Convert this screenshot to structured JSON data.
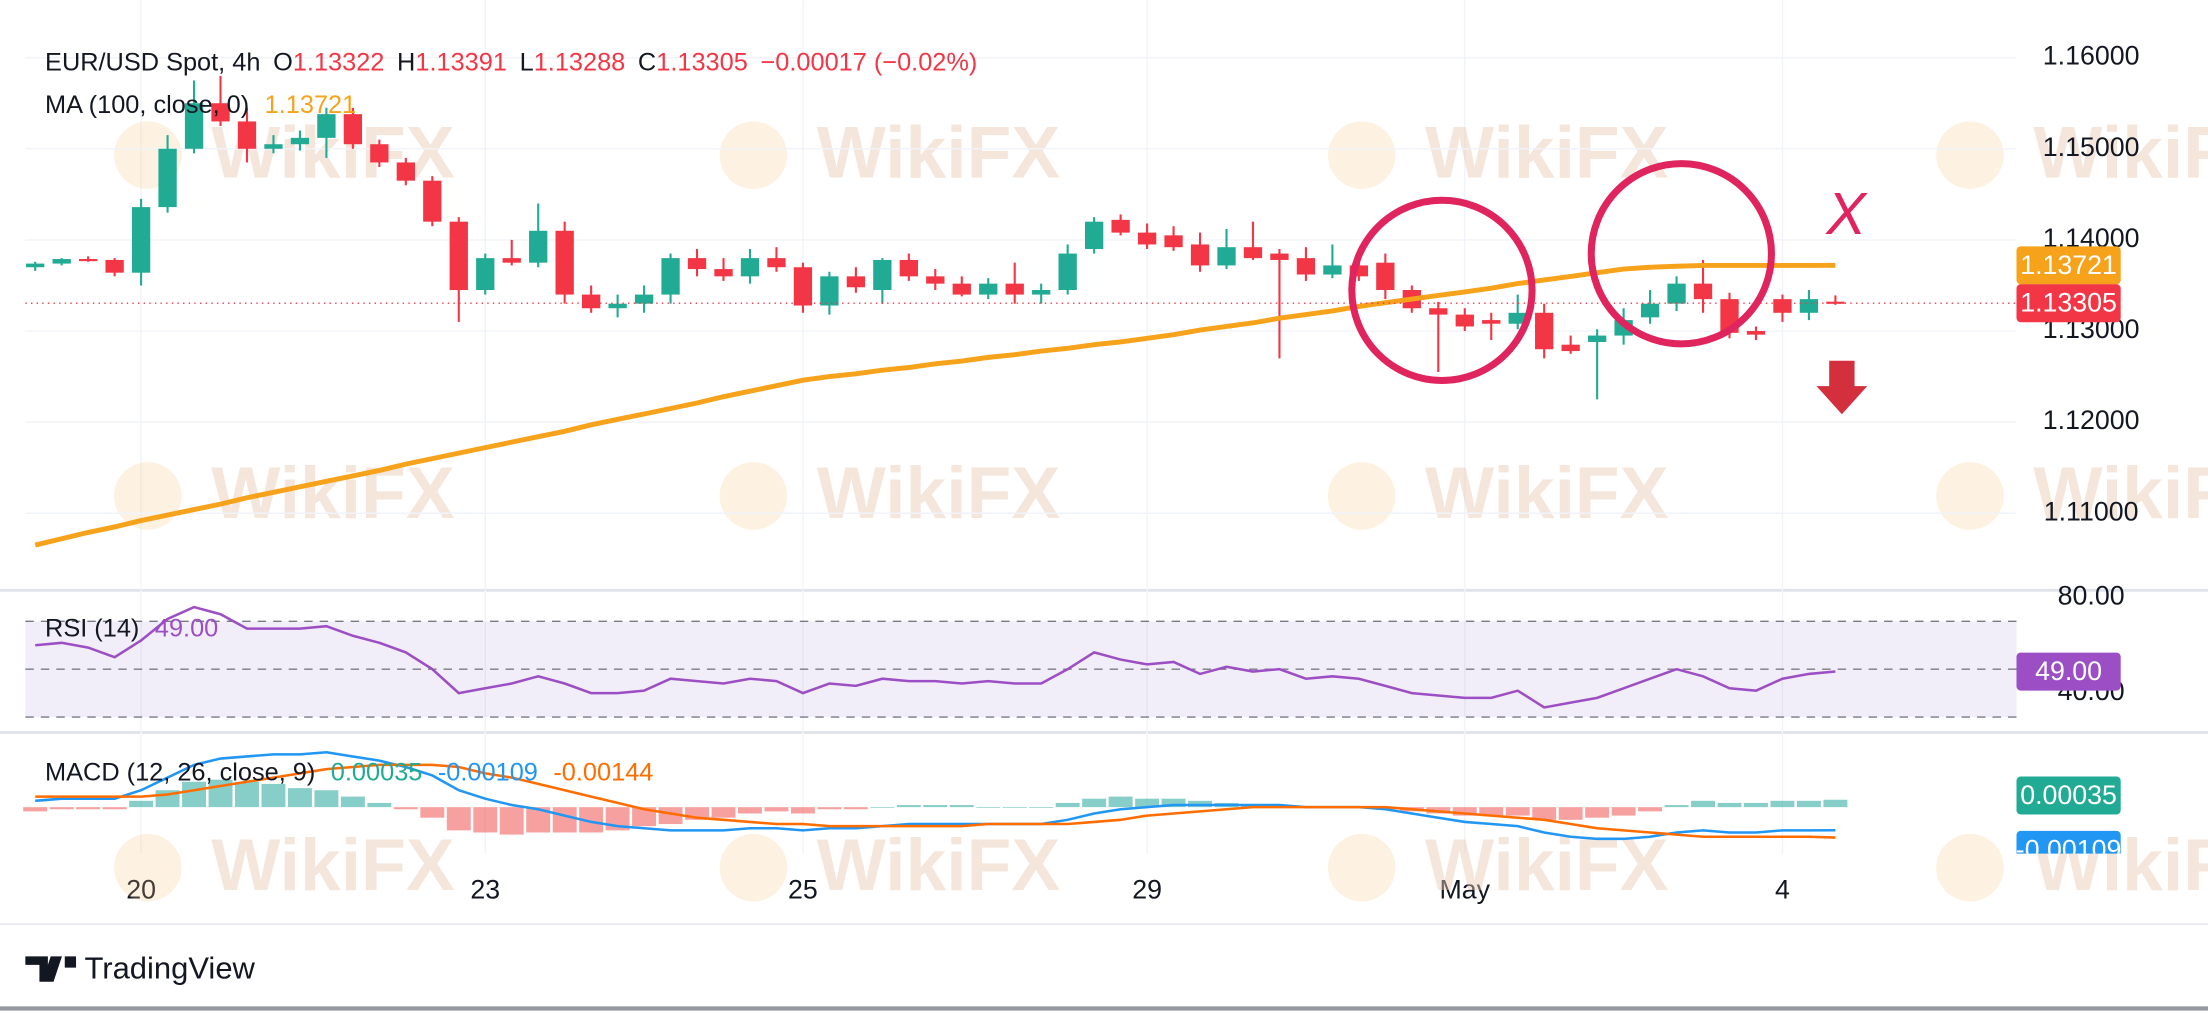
{
  "watermark": "WikiFX",
  "branding": "TradingView",
  "chart_data": [
    {
      "type": "candlestick",
      "title": "EUR/USD Spot, 4h",
      "ohlc_labels": [
        "O",
        "H",
        "L",
        "C"
      ],
      "change": "−0.00017 (−0.02%)",
      "categories": [
        null,
        null,
        null,
        null,
        "20",
        null,
        null,
        null,
        null,
        null,
        null,
        null,
        null,
        null,
        null,
        null,
        null,
        "23",
        null,
        null,
        null,
        null,
        null,
        null,
        null,
        null,
        null,
        null,
        null,
        "25",
        null,
        null,
        null,
        null,
        null,
        null,
        null,
        null,
        null,
        null,
        null,
        null,
        "29",
        null,
        null,
        null,
        null,
        null,
        null,
        null,
        null,
        null,
        null,
        null,
        "May",
        null,
        null,
        null,
        null,
        null,
        null,
        null,
        null,
        null,
        null,
        null,
        "4",
        null,
        null
      ],
      "open": [
        1.137,
        1.1374,
        1.1379,
        1.1378,
        1.1364,
        1.1436,
        1.15,
        1.155,
        1.153,
        1.15,
        1.1505,
        1.1512,
        1.1538,
        1.1505,
        1.1485,
        1.1465,
        1.142,
        1.1345,
        1.138,
        1.1375,
        1.141,
        1.134,
        1.1325,
        1.133,
        1.134,
        1.138,
        1.1368,
        1.136,
        1.138,
        1.137,
        1.1328,
        1.136,
        1.1345,
        1.1378,
        1.136,
        1.1352,
        1.134,
        1.1352,
        1.134,
        1.1345,
        1.139,
        1.1422,
        1.1408,
        1.1405,
        1.1395,
        1.1372,
        1.1392,
        1.1385,
        1.138,
        1.1362,
        1.1372,
        1.1375,
        1.1345,
        1.1325,
        1.1318,
        1.1312,
        1.1308,
        1.132,
        1.1285,
        1.1288,
        1.1295,
        1.1315,
        1.133,
        1.1352,
        1.1335,
        1.13,
        1.1335,
        1.132,
        1.13322
      ],
      "high": [
        1.1376,
        1.138,
        1.1382,
        1.138,
        1.1445,
        1.1515,
        1.1575,
        1.158,
        1.1545,
        1.1515,
        1.152,
        1.1545,
        1.1545,
        1.151,
        1.149,
        1.147,
        1.1425,
        1.1385,
        1.14,
        1.144,
        1.142,
        1.135,
        1.134,
        1.135,
        1.1385,
        1.139,
        1.138,
        1.139,
        1.1392,
        1.1375,
        1.1365,
        1.137,
        1.138,
        1.1385,
        1.1368,
        1.136,
        1.1358,
        1.1375,
        1.1352,
        1.1395,
        1.1425,
        1.1428,
        1.1418,
        1.1415,
        1.1408,
        1.1412,
        1.142,
        1.139,
        1.1392,
        1.1395,
        1.1385,
        1.1385,
        1.135,
        1.1332,
        1.1325,
        1.132,
        1.134,
        1.133,
        1.1295,
        1.1302,
        1.1325,
        1.1345,
        1.136,
        1.1378,
        1.1342,
        1.1305,
        1.134,
        1.1345,
        1.13391
      ],
      "low": [
        1.1366,
        1.1372,
        1.1376,
        1.136,
        1.135,
        1.143,
        1.1495,
        1.1525,
        1.1485,
        1.1495,
        1.1498,
        1.149,
        1.15,
        1.148,
        1.146,
        1.1415,
        1.131,
        1.134,
        1.1372,
        1.137,
        1.133,
        1.132,
        1.1315,
        1.132,
        1.133,
        1.136,
        1.1355,
        1.1352,
        1.1365,
        1.132,
        1.1318,
        1.1342,
        1.133,
        1.1355,
        1.1345,
        1.1338,
        1.1335,
        1.133,
        1.133,
        1.134,
        1.1385,
        1.1405,
        1.139,
        1.1388,
        1.1365,
        1.1368,
        1.1378,
        1.127,
        1.1355,
        1.1358,
        1.1355,
        1.1335,
        1.132,
        1.1255,
        1.13,
        1.129,
        1.1302,
        1.127,
        1.1275,
        1.1225,
        1.1285,
        1.1308,
        1.1322,
        1.132,
        1.1292,
        1.129,
        1.131,
        1.1312,
        1.13288
      ],
      "close": [
        1.1374,
        1.1379,
        1.1378,
        1.1364,
        1.1436,
        1.15,
        1.155,
        1.153,
        1.15,
        1.1505,
        1.1512,
        1.1538,
        1.1505,
        1.1485,
        1.1465,
        1.142,
        1.1345,
        1.138,
        1.1375,
        1.141,
        1.134,
        1.1325,
        1.133,
        1.134,
        1.138,
        1.1368,
        1.136,
        1.138,
        1.137,
        1.1328,
        1.136,
        1.1348,
        1.1378,
        1.136,
        1.1352,
        1.134,
        1.1352,
        1.134,
        1.1345,
        1.1385,
        1.142,
        1.1408,
        1.1395,
        1.1392,
        1.1372,
        1.1392,
        1.138,
        1.1378,
        1.1362,
        1.1372,
        1.136,
        1.1345,
        1.1325,
        1.1318,
        1.1305,
        1.1308,
        1.132,
        1.128,
        1.1278,
        1.1295,
        1.1312,
        1.133,
        1.1352,
        1.1335,
        1.1298,
        1.1296,
        1.132,
        1.1335,
        1.13305
      ],
      "up_color": "#22ab94",
      "down_color": "#f23645",
      "overlay": {
        "name": "MA (100, close, 0)",
        "color": "#f7a21b",
        "values": [
          1.1065,
          1.1072,
          1.1079,
          1.1085,
          1.1092,
          1.1098,
          1.1104,
          1.111,
          1.1117,
          1.1123,
          1.1129,
          1.1135,
          1.1141,
          1.1147,
          1.1154,
          1.116,
          1.1166,
          1.1172,
          1.1178,
          1.1184,
          1.119,
          1.1197,
          1.1203,
          1.1209,
          1.1215,
          1.1221,
          1.1228,
          1.1234,
          1.124,
          1.1246,
          1.125,
          1.1253,
          1.1257,
          1.126,
          1.1264,
          1.1267,
          1.1271,
          1.1274,
          1.1278,
          1.1281,
          1.1285,
          1.1288,
          1.1292,
          1.1296,
          1.1301,
          1.1305,
          1.1309,
          1.1314,
          1.1318,
          1.1322,
          1.1327,
          1.1331,
          1.1335,
          1.1339,
          1.1343,
          1.1347,
          1.1352,
          1.1356,
          1.136,
          1.1364,
          1.1368,
          1.137,
          1.1371,
          1.1372,
          1.1372,
          1.1372,
          1.1372,
          1.1372,
          1.13721
        ]
      },
      "ylim": [
        1.1017,
        1.1663
      ],
      "yticks": [
        {
          "value": 1.11,
          "label": "1.11000"
        },
        {
          "value": 1.12,
          "label": "1.12000"
        },
        {
          "value": 1.13,
          "label": "1.13000"
        },
        {
          "value": 1.14,
          "label": "1.14000"
        },
        {
          "value": 1.15,
          "label": "1.15000"
        },
        {
          "value": 1.16,
          "label": "1.16000"
        }
      ],
      "grid": true,
      "annotation": "X"
    },
    {
      "type": "line",
      "name": "RSI (14)",
      "color": "#9c4fc4",
      "values": [
        60,
        61,
        59,
        55,
        62,
        71,
        76,
        73,
        67,
        67,
        67,
        68,
        64,
        61,
        57,
        50,
        40,
        42,
        44,
        47,
        44,
        40,
        40,
        41,
        46,
        45,
        44,
        46,
        45,
        40,
        44,
        43,
        46,
        45,
        45,
        44,
        45,
        44,
        44,
        50,
        57,
        54,
        52,
        53,
        48,
        51,
        49,
        50,
        46,
        47,
        46,
        43,
        40,
        39,
        38,
        38,
        41,
        34,
        36,
        38,
        42,
        46,
        50,
        47,
        42,
        41,
        46,
        48,
        49
      ],
      "last_value_label": "49.00",
      "levels": [
        30,
        50,
        70
      ],
      "ylim": [
        24.7,
        82.4
      ],
      "yticks": [
        {
          "value": 40,
          "label": "40.00"
        },
        {
          "value": 80,
          "label": "80.00"
        }
      ]
    },
    {
      "type": "macd",
      "name": "MACD (12, 26, close, 9)",
      "histogram": {
        "up_color": "#26a69a",
        "down_color": "#ef5350",
        "values": [
          -0.0002,
          -0.0001,
          -0.0001,
          -0.0001,
          0.0003,
          0.0008,
          0.0012,
          0.0013,
          0.0012,
          0.0011,
          0.0009,
          0.0008,
          0.0005,
          0.0002,
          -0.0001,
          -0.0005,
          -0.0011,
          -0.0012,
          -0.0013,
          -0.0012,
          -0.0012,
          -0.0012,
          -0.0011,
          -0.0009,
          -0.0008,
          -0.0006,
          -0.0005,
          -0.0003,
          -0.0002,
          -0.0003,
          -0.0001,
          -0.0001,
          0,
          0.0001,
          0.0001,
          0.0001,
          0,
          0,
          0,
          0.0002,
          0.0004,
          0.0005,
          0.0004,
          0.0004,
          0.0003,
          0.0002,
          0.0001,
          0.0001,
          0,
          0,
          0,
          -0.0001,
          -0.0002,
          -0.0003,
          -0.0004,
          -0.0004,
          -0.0004,
          -0.0006,
          -0.0006,
          -0.0005,
          -0.0004,
          -0.0002,
          0.0001,
          0.0003,
          0.0002,
          0.0002,
          0.0003,
          0.0003,
          0.00035
        ]
      },
      "macd": {
        "color": "#2196f3",
        "values": [
          0.0003,
          0.0004,
          0.0004,
          0.0004,
          0.0008,
          0.0014,
          0.002,
          0.0023,
          0.0024,
          0.0025,
          0.0025,
          0.0026,
          0.0024,
          0.0022,
          0.0019,
          0.0015,
          0.0008,
          0.0004,
          0.0001,
          -0.0001,
          -0.0004,
          -0.0007,
          -0.0009,
          -0.001,
          -0.0011,
          -0.0011,
          -0.0011,
          -0.001,
          -0.001,
          -0.0011,
          -0.001,
          -0.001,
          -0.0009,
          -0.0008,
          -0.0008,
          -0.0008,
          -0.0008,
          -0.0008,
          -0.0008,
          -0.0006,
          -0.0003,
          -0.0001,
          0,
          0.0001,
          0.0001,
          0.0001,
          0.0001,
          0.0001,
          0,
          0,
          0,
          -0.0001,
          -0.0003,
          -0.0005,
          -0.0007,
          -0.0008,
          -0.0009,
          -0.0012,
          -0.0014,
          -0.0015,
          -0.0015,
          -0.0014,
          -0.0012,
          -0.0011,
          -0.0012,
          -0.0012,
          -0.0011,
          -0.0011,
          -0.00109
        ]
      },
      "signal": {
        "color": "#ff6d00",
        "values": [
          0.0005,
          0.0005,
          0.0005,
          0.0005,
          0.0005,
          0.0006,
          0.0008,
          0.001,
          0.0012,
          0.0014,
          0.0016,
          0.0018,
          0.0019,
          0.002,
          0.002,
          0.002,
          0.0019,
          0.0016,
          0.0014,
          0.0011,
          0.0008,
          0.0005,
          0.0002,
          -0.0001,
          -0.0003,
          -0.0005,
          -0.0006,
          -0.0007,
          -0.0008,
          -0.0008,
          -0.0009,
          -0.0009,
          -0.0009,
          -0.0009,
          -0.0009,
          -0.0009,
          -0.0008,
          -0.0008,
          -0.0008,
          -0.0008,
          -0.0007,
          -0.0006,
          -0.0004,
          -0.0003,
          -0.0002,
          -0.0001,
          0,
          0,
          0,
          0,
          0,
          0,
          -0.0001,
          -0.0002,
          -0.0003,
          -0.0004,
          -0.0005,
          -0.0006,
          -0.0008,
          -0.001,
          -0.0011,
          -0.0012,
          -0.0013,
          -0.0014,
          -0.0014,
          -0.0014,
          -0.0014,
          -0.0014,
          -0.00144
        ]
      },
      "ylim": [
        -0.0022,
        0.0034
      ]
    }
  ]
}
